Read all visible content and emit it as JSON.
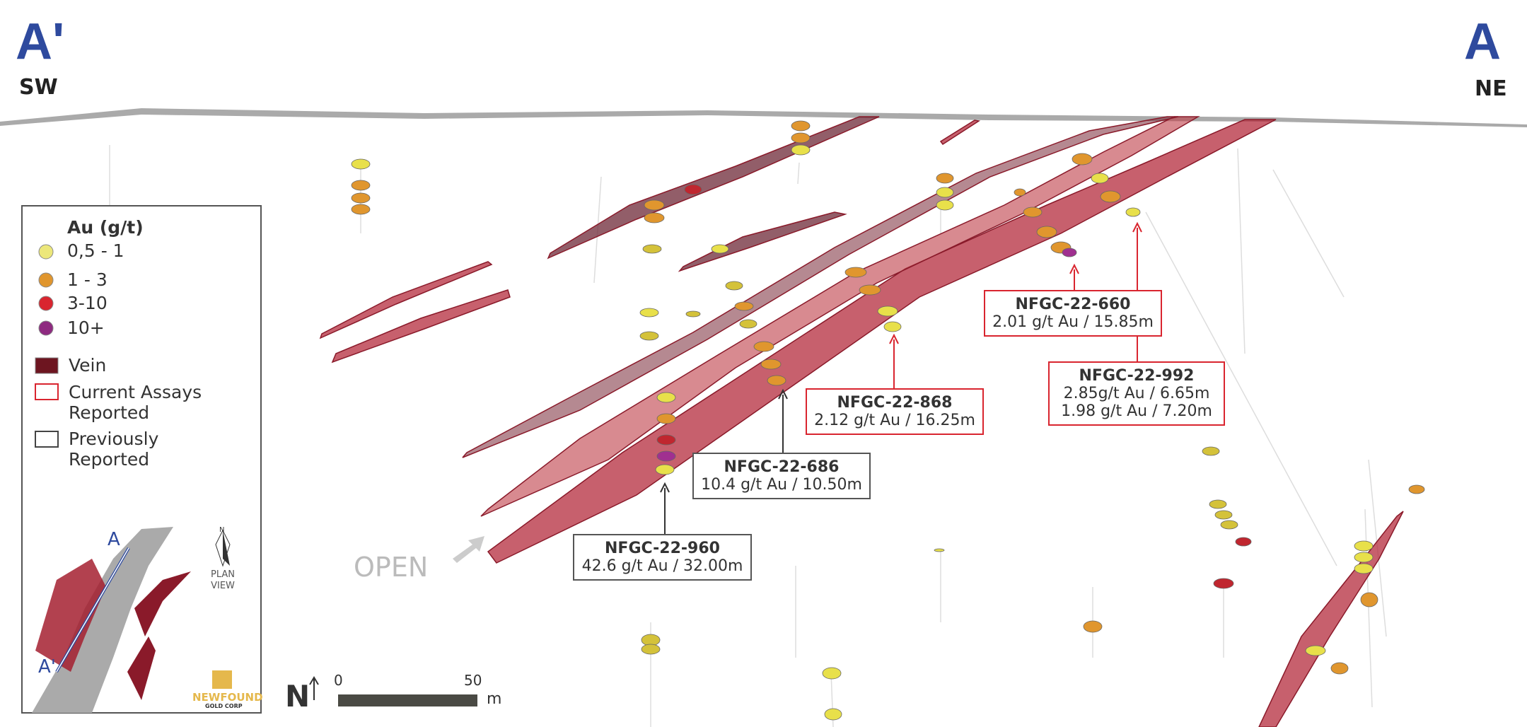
{
  "section": {
    "left_label": "A'",
    "left_direction": "SW",
    "right_label": "A",
    "right_direction": "NE"
  },
  "legend": {
    "title": "Au (g/t)",
    "grades": [
      "0,5 - 1",
      "1 - 3",
      "3-10",
      "10+"
    ],
    "features": [
      "Vein",
      "Current Assays Reported",
      "Previously Reported"
    ]
  },
  "plan_view": {
    "label_a": "A",
    "label_a_prime": "A'",
    "north": "N",
    "caption": "PLAN VIEW",
    "logo": "NEWFOUND",
    "logo_sub": "GOLD CORP"
  },
  "callouts": [
    {
      "hole": "NFGC-22-960",
      "results": [
        "42.6 g/t Au / 32.00m"
      ]
    },
    {
      "hole": "NFGC-22-686",
      "results": [
        "10.4 g/t Au / 10.50m"
      ]
    },
    {
      "hole": "NFGC-22-868",
      "results": [
        "2.12 g/t Au / 16.25m"
      ]
    },
    {
      "hole": "NFGC-22-660",
      "results": [
        "2.01 g/t Au / 15.85m"
      ]
    },
    {
      "hole": "NFGC-22-992",
      "results": [
        "2.85g/t Au / 6.65m",
        "1.98 g/t Au / 7.20m"
      ]
    }
  ],
  "open_label": "OPEN",
  "scale": {
    "north": "N",
    "start": "0",
    "end": "50",
    "unit": "m"
  }
}
